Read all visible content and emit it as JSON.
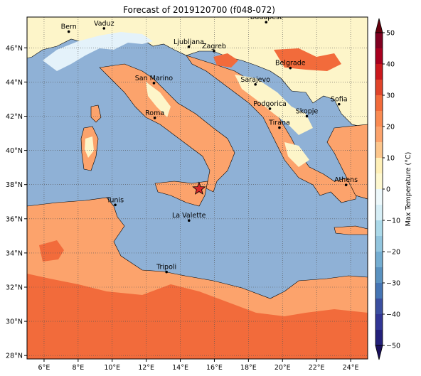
{
  "title": "Forecast of 2019120700 (f048-072)",
  "map": {
    "lon_ticks": [
      "6°E",
      "8°E",
      "10°E",
      "12°E",
      "14°E",
      "16°E",
      "18°E",
      "20°E",
      "22°E",
      "24°E"
    ],
    "lat_ticks": [
      "28°N",
      "30°N",
      "32°N",
      "34°N",
      "36°N",
      "38°N",
      "40°N",
      "42°N",
      "44°N",
      "46°N"
    ],
    "lon_values": [
      6,
      8,
      10,
      12,
      14,
      16,
      18,
      20,
      22,
      24
    ],
    "lat_values": [
      28,
      30,
      32,
      34,
      36,
      38,
      40,
      42,
      44,
      46
    ],
    "lon_range": [
      5,
      25
    ],
    "lat_range": [
      27.8,
      47.8
    ],
    "grid": true,
    "grid_style": "dotted"
  },
  "cities": [
    {
      "name": "Bern",
      "lon": 7.45,
      "lat": 46.95
    },
    {
      "name": "Vaduz",
      "lon": 9.52,
      "lat": 47.14
    },
    {
      "name": "Budapest",
      "lon": 19.04,
      "lat": 47.5
    },
    {
      "name": "Ljubljana",
      "lon": 14.5,
      "lat": 46.06
    },
    {
      "name": "Zagreb",
      "lon": 15.98,
      "lat": 45.81
    },
    {
      "name": "Belgrade",
      "lon": 20.46,
      "lat": 44.82
    },
    {
      "name": "San Marino",
      "lon": 12.45,
      "lat": 43.94
    },
    {
      "name": "Sarajevo",
      "lon": 18.41,
      "lat": 43.86
    },
    {
      "name": "Sofia",
      "lon": 23.32,
      "lat": 42.7
    },
    {
      "name": "Podgorica",
      "lon": 19.26,
      "lat": 42.44
    },
    {
      "name": "Skopje",
      "lon": 21.43,
      "lat": 42.0
    },
    {
      "name": "Roma",
      "lon": 12.5,
      "lat": 41.9
    },
    {
      "name": "Tirana",
      "lon": 19.82,
      "lat": 41.33
    },
    {
      "name": "Athens",
      "lon": 23.73,
      "lat": 37.98
    },
    {
      "name": "Tunis",
      "lon": 10.18,
      "lat": 36.81
    },
    {
      "name": "La Valette",
      "lon": 14.51,
      "lat": 35.9
    },
    {
      "name": "Tripoli",
      "lon": 13.19,
      "lat": 32.89
    }
  ],
  "marker": {
    "symbol": "star",
    "lon": 15.1,
    "lat": 37.75,
    "color": "#d62728"
  },
  "colorbar": {
    "label": "Max Temperature (°C)",
    "ticks": [
      "50",
      "40",
      "30",
      "20",
      "10",
      "0",
      "−10",
      "−20",
      "−30",
      "−40",
      "−50"
    ],
    "tick_values": [
      50,
      40,
      30,
      20,
      10,
      0,
      -10,
      -20,
      -30,
      -40,
      -50
    ],
    "range": [
      -50,
      50
    ],
    "extend": "both",
    "levels": [
      {
        "from": 45,
        "to": 50,
        "color": "#800021"
      },
      {
        "from": 40,
        "to": 45,
        "color": "#a8001f"
      },
      {
        "from": 35,
        "to": 40,
        "color": "#cb181d"
      },
      {
        "from": 30,
        "to": 35,
        "color": "#e0442a"
      },
      {
        "from": 25,
        "to": 30,
        "color": "#f26b3b"
      },
      {
        "from": 20,
        "to": 25,
        "color": "#fa8b52"
      },
      {
        "from": 15,
        "to": 20,
        "color": "#fca36c"
      },
      {
        "from": 10,
        "to": 15,
        "color": "#fdc68c"
      },
      {
        "from": 5,
        "to": 10,
        "color": "#fff0b8"
      },
      {
        "from": 0,
        "to": 5,
        "color": "#fef8d0"
      },
      {
        "from": -5,
        "to": 0,
        "color": "#edf8fb"
      },
      {
        "from": -10,
        "to": -5,
        "color": "#d6eef6"
      },
      {
        "from": -15,
        "to": -10,
        "color": "#abd9e9"
      },
      {
        "from": -20,
        "to": -15,
        "color": "#92c5de"
      },
      {
        "from": -25,
        "to": -20,
        "color": "#74add1"
      },
      {
        "from": -30,
        "to": -25,
        "color": "#5a92c0"
      },
      {
        "from": -35,
        "to": -30,
        "color": "#4575b4"
      },
      {
        "from": -40,
        "to": -35,
        "color": "#3b4fa0"
      },
      {
        "from": -45,
        "to": -40,
        "color": "#313695"
      },
      {
        "from": -50,
        "to": -45,
        "color": "#23207a"
      }
    ],
    "under_color": "#1a0f5c",
    "over_color": "#67000d"
  },
  "colors": {
    "sea": "#8fb1d6",
    "band_0_10": "#fdf5c9",
    "band_10_20": "#fca36c",
    "band_20_30": "#f26b3b",
    "cold_patch": "#e4f2fa",
    "coast": "#000000"
  }
}
